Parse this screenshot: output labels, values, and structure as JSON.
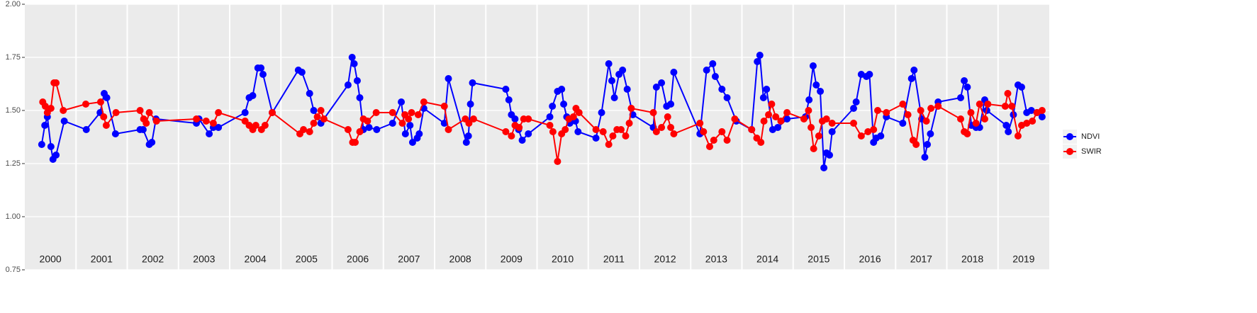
{
  "chart_data": {
    "type": "line",
    "xlim": [
      2000,
      2020
    ],
    "xticks": [
      {
        "value": 2000.5,
        "label": "2000"
      },
      {
        "value": 2001.5,
        "label": "2001"
      },
      {
        "value": 2002.5,
        "label": "2002"
      },
      {
        "value": 2003.5,
        "label": "2003"
      },
      {
        "value": 2004.5,
        "label": "2004"
      },
      {
        "value": 2005.5,
        "label": "2005"
      },
      {
        "value": 2006.5,
        "label": "2006"
      },
      {
        "value": 2007.5,
        "label": "2007"
      },
      {
        "value": 2008.5,
        "label": "2008"
      },
      {
        "value": 2009.5,
        "label": "2009"
      },
      {
        "value": 2010.5,
        "label": "2010"
      },
      {
        "value": 2011.5,
        "label": "2011"
      },
      {
        "value": 2012.5,
        "label": "2012"
      },
      {
        "value": 2013.5,
        "label": "2013"
      },
      {
        "value": 2014.5,
        "label": "2014"
      },
      {
        "value": 2015.5,
        "label": "2015"
      },
      {
        "value": 2016.5,
        "label": "2016"
      },
      {
        "value": 2017.5,
        "label": "2017"
      },
      {
        "value": 2018.5,
        "label": "2018"
      },
      {
        "value": 2019.5,
        "label": "2019"
      }
    ],
    "ylim": [
      0.75,
      2.0
    ],
    "yticks": [
      {
        "value": 0.75,
        "label": "0.75"
      },
      {
        "value": 1.0,
        "label": "1.00"
      },
      {
        "value": 1.25,
        "label": "1.25"
      },
      {
        "value": 1.5,
        "label": "1.50"
      },
      {
        "value": 1.75,
        "label": "1.75"
      },
      {
        "value": 2.0,
        "label": "2.00"
      }
    ],
    "grid": true,
    "legend": "right",
    "series": [
      {
        "name": "NDVI",
        "color": "#0000ff",
        "x": [
          2000.33,
          2000.39,
          2000.44,
          2000.51,
          2000.55,
          2000.61,
          2000.77,
          2001.2,
          2001.47,
          2001.55,
          2001.6,
          2001.77,
          2002.25,
          2002.31,
          2002.43,
          2002.48,
          2002.56,
          2003.35,
          2003.4,
          2003.6,
          2003.68,
          2003.78,
          2004.3,
          2004.38,
          2004.45,
          2004.55,
          2004.61,
          2004.65,
          2004.83,
          2005.34,
          2005.41,
          2005.56,
          2005.64,
          2005.78,
          2006.31,
          2006.39,
          2006.43,
          2006.49,
          2006.54,
          2006.61,
          2006.72,
          2006.87,
          2007.18,
          2007.35,
          2007.43,
          2007.52,
          2007.57,
          2007.66,
          2007.7,
          2007.79,
          2008.19,
          2008.27,
          2008.62,
          2008.66,
          2008.7,
          2008.74,
          2009.39,
          2009.45,
          2009.5,
          2009.57,
          2009.64,
          2009.71,
          2009.83,
          2010.25,
          2010.3,
          2010.4,
          2010.48,
          2010.52,
          2010.58,
          2010.64,
          2010.75,
          2010.8,
          2011.15,
          2011.26,
          2011.4,
          2011.46,
          2011.51,
          2011.6,
          2011.67,
          2011.76,
          2011.87,
          2012.27,
          2012.33,
          2012.43,
          2012.53,
          2012.61,
          2012.67,
          2013.18,
          2013.31,
          2013.43,
          2013.48,
          2013.61,
          2013.71,
          2013.89,
          2014.19,
          2014.3,
          2014.35,
          2014.42,
          2014.48,
          2014.6,
          2014.7,
          2014.88,
          2015.24,
          2015.31,
          2015.39,
          2015.45,
          2015.53,
          2015.6,
          2015.65,
          2015.71,
          2015.76,
          2016.18,
          2016.23,
          2016.33,
          2016.43,
          2016.49,
          2016.57,
          2016.62,
          2016.71,
          2016.82,
          2017.14,
          2017.31,
          2017.36,
          2017.51,
          2017.57,
          2017.62,
          2017.68,
          2017.83,
          2018.27,
          2018.34,
          2018.4,
          2018.48,
          2018.57,
          2018.64,
          2018.74,
          2018.78,
          2019.16,
          2019.2,
          2019.3,
          2019.39,
          2019.46,
          2019.56,
          2019.65,
          2019.76,
          2019.86
        ],
        "values": [
          1.34,
          1.43,
          1.47,
          1.33,
          1.27,
          1.29,
          1.45,
          1.41,
          1.49,
          1.58,
          1.56,
          1.39,
          1.41,
          1.41,
          1.34,
          1.35,
          1.46,
          1.44,
          1.46,
          1.39,
          1.42,
          1.42,
          1.49,
          1.56,
          1.57,
          1.7,
          1.7,
          1.67,
          1.49,
          1.69,
          1.68,
          1.58,
          1.5,
          1.44,
          1.62,
          1.75,
          1.72,
          1.64,
          1.56,
          1.41,
          1.42,
          1.41,
          1.44,
          1.54,
          1.39,
          1.43,
          1.35,
          1.37,
          1.39,
          1.51,
          1.44,
          1.65,
          1.35,
          1.38,
          1.53,
          1.63,
          1.6,
          1.55,
          1.48,
          1.46,
          1.41,
          1.36,
          1.39,
          1.47,
          1.52,
          1.59,
          1.6,
          1.53,
          1.47,
          1.44,
          1.45,
          1.4,
          1.37,
          1.49,
          1.72,
          1.64,
          1.56,
          1.67,
          1.69,
          1.6,
          1.48,
          1.42,
          1.61,
          1.63,
          1.52,
          1.53,
          1.68,
          1.39,
          1.69,
          1.72,
          1.66,
          1.6,
          1.56,
          1.45,
          1.41,
          1.73,
          1.76,
          1.56,
          1.6,
          1.41,
          1.42,
          1.46,
          1.47,
          1.55,
          1.71,
          1.62,
          1.59,
          1.23,
          1.3,
          1.29,
          1.4,
          1.51,
          1.54,
          1.67,
          1.66,
          1.67,
          1.35,
          1.37,
          1.38,
          1.47,
          1.44,
          1.65,
          1.69,
          1.46,
          1.28,
          1.34,
          1.39,
          1.54,
          1.56,
          1.64,
          1.61,
          1.43,
          1.42,
          1.42,
          1.55,
          1.5,
          1.43,
          1.4,
          1.48,
          1.62,
          1.61,
          1.49,
          1.5,
          1.49,
          1.47
        ]
      },
      {
        "name": "SWIR",
        "color": "#ff0000",
        "x": [
          2000.35,
          2000.4,
          2000.44,
          2000.51,
          2000.57,
          2000.61,
          2000.75,
          2001.19,
          2001.48,
          2001.54,
          2001.59,
          2001.78,
          2002.25,
          2002.32,
          2002.37,
          2002.43,
          2002.57,
          2003.35,
          2003.54,
          2003.68,
          2003.78,
          2004.3,
          2004.38,
          2004.45,
          2004.51,
          2004.62,
          2004.69,
          2004.83,
          2005.37,
          2005.44,
          2005.56,
          2005.64,
          2005.71,
          2005.78,
          2005.84,
          2006.31,
          2006.4,
          2006.45,
          2006.54,
          2006.61,
          2006.69,
          2006.86,
          2007.18,
          2007.37,
          2007.42,
          2007.49,
          2007.55,
          2007.68,
          2007.79,
          2008.19,
          2008.27,
          2008.6,
          2008.67,
          2008.76,
          2009.39,
          2009.5,
          2009.57,
          2009.65,
          2009.74,
          2009.83,
          2010.25,
          2010.31,
          2010.4,
          2010.48,
          2010.55,
          2010.62,
          2010.71,
          2010.76,
          2010.82,
          2011.15,
          2011.29,
          2011.4,
          2011.48,
          2011.56,
          2011.64,
          2011.73,
          2011.8,
          2011.84,
          2012.27,
          2012.33,
          2012.43,
          2012.55,
          2012.61,
          2012.67,
          2013.18,
          2013.25,
          2013.37,
          2013.45,
          2013.61,
          2013.71,
          2013.86,
          2014.19,
          2014.29,
          2014.37,
          2014.43,
          2014.52,
          2014.58,
          2014.66,
          2014.76,
          2014.88,
          2015.21,
          2015.3,
          2015.35,
          2015.4,
          2015.5,
          2015.57,
          2015.65,
          2015.76,
          2016.18,
          2016.33,
          2016.46,
          2016.57,
          2016.65,
          2016.82,
          2017.14,
          2017.24,
          2017.34,
          2017.4,
          2017.49,
          2017.6,
          2017.69,
          2017.83,
          2018.27,
          2018.34,
          2018.4,
          2018.47,
          2018.57,
          2018.64,
          2018.74,
          2018.8,
          2019.14,
          2019.19,
          2019.27,
          2019.39,
          2019.46,
          2019.56,
          2019.67,
          2019.76,
          2019.86
        ],
        "values": [
          1.54,
          1.52,
          1.49,
          1.51,
          1.63,
          1.63,
          1.5,
          1.53,
          1.54,
          1.47,
          1.43,
          1.49,
          1.5,
          1.46,
          1.44,
          1.49,
          1.45,
          1.46,
          1.45,
          1.44,
          1.49,
          1.45,
          1.43,
          1.41,
          1.43,
          1.41,
          1.43,
          1.49,
          1.39,
          1.41,
          1.4,
          1.44,
          1.47,
          1.5,
          1.46,
          1.41,
          1.35,
          1.35,
          1.4,
          1.46,
          1.45,
          1.49,
          1.49,
          1.44,
          1.48,
          1.46,
          1.49,
          1.48,
          1.54,
          1.52,
          1.41,
          1.46,
          1.44,
          1.46,
          1.4,
          1.38,
          1.43,
          1.42,
          1.46,
          1.46,
          1.43,
          1.4,
          1.26,
          1.39,
          1.41,
          1.46,
          1.47,
          1.51,
          1.49,
          1.41,
          1.4,
          1.34,
          1.38,
          1.41,
          1.41,
          1.38,
          1.44,
          1.51,
          1.49,
          1.4,
          1.42,
          1.47,
          1.42,
          1.39,
          1.44,
          1.4,
          1.33,
          1.36,
          1.4,
          1.36,
          1.46,
          1.41,
          1.37,
          1.35,
          1.45,
          1.48,
          1.53,
          1.47,
          1.45,
          1.49,
          1.46,
          1.5,
          1.42,
          1.32,
          1.38,
          1.45,
          1.46,
          1.44,
          1.44,
          1.38,
          1.4,
          1.41,
          1.5,
          1.49,
          1.53,
          1.48,
          1.36,
          1.34,
          1.5,
          1.45,
          1.51,
          1.52,
          1.46,
          1.4,
          1.39,
          1.49,
          1.44,
          1.53,
          1.46,
          1.53,
          1.52,
          1.58,
          1.52,
          1.38,
          1.43,
          1.44,
          1.45,
          1.49,
          1.5
        ]
      }
    ]
  }
}
